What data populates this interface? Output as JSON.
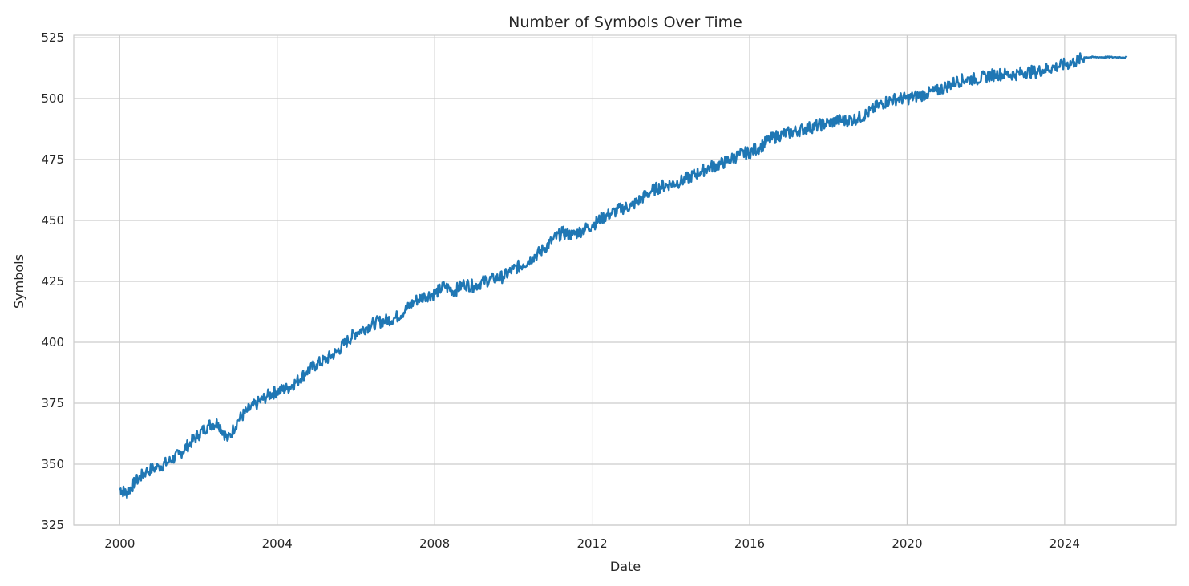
{
  "chart_data": {
    "type": "line",
    "title": "Number of Symbols Over Time",
    "xlabel": "Date",
    "ylabel": "Symbols",
    "x_ticks": [
      "2000",
      "2004",
      "2008",
      "2012",
      "2016",
      "2020",
      "2024"
    ],
    "y_ticks": [
      "325",
      "350",
      "375",
      "400",
      "425",
      "450",
      "475",
      "500",
      "525"
    ],
    "xlim": [
      "1998-11",
      "2026-11"
    ],
    "ylim": [
      325,
      526
    ],
    "grid": true,
    "line_color": "#1f77b4",
    "series": [
      {
        "x": [
          "2000-01",
          "2000-03",
          "2000-06",
          "2000-09",
          "2001-01",
          "2001-04",
          "2001-07",
          "2001-10",
          "2002-01",
          "2002-04",
          "2002-07",
          "2002-10",
          "2003-01",
          "2003-04",
          "2003-07",
          "2003-10",
          "2004-01",
          "2004-04",
          "2004-07",
          "2004-10",
          "2005-01",
          "2005-04",
          "2005-07",
          "2005-10",
          "2006-01",
          "2006-04",
          "2006-07",
          "2006-10",
          "2007-01",
          "2007-04",
          "2007-07",
          "2007-10",
          "2008-01",
          "2008-04",
          "2008-07",
          "2008-10",
          "2009-01",
          "2009-04",
          "2009-07",
          "2009-10",
          "2010-01",
          "2010-04",
          "2010-07",
          "2010-10",
          "2011-01",
          "2011-04",
          "2011-07",
          "2011-10",
          "2012-01",
          "2012-04",
          "2012-07",
          "2012-10",
          "2013-01",
          "2013-04",
          "2013-07",
          "2013-10",
          "2014-01",
          "2014-04",
          "2014-07",
          "2014-10",
          "2015-01",
          "2015-04",
          "2015-07",
          "2015-10",
          "2016-01",
          "2016-04",
          "2016-07",
          "2016-10",
          "2017-01",
          "2017-04",
          "2017-07",
          "2017-10",
          "2018-01",
          "2018-04",
          "2018-07",
          "2018-10",
          "2019-01",
          "2019-04",
          "2019-07",
          "2019-10",
          "2020-01",
          "2020-04",
          "2020-07",
          "2020-10",
          "2021-01",
          "2021-04",
          "2021-07",
          "2021-10",
          "2022-01",
          "2022-04",
          "2022-07",
          "2022-10",
          "2023-01",
          "2023-04",
          "2023-07",
          "2023-10",
          "2024-01",
          "2024-04",
          "2024-07",
          "2024-10",
          "2025-01",
          "2025-04",
          "2025-08"
        ],
        "values": [
          340,
          338,
          343,
          347,
          349,
          351,
          354,
          358,
          362,
          366,
          367,
          360,
          368,
          372,
          375,
          378,
          380,
          381,
          384,
          388,
          391,
          393,
          396,
          400,
          404,
          406,
          408,
          409,
          410,
          413,
          417,
          419,
          420,
          423,
          421,
          424,
          423,
          425,
          426,
          427,
          430,
          432,
          435,
          438,
          442,
          445,
          444,
          446,
          448,
          451,
          453,
          455,
          456,
          459,
          462,
          464,
          465,
          466,
          468,
          470,
          472,
          473,
          475,
          477,
          478,
          480,
          483,
          485,
          486,
          487,
          488,
          489,
          490,
          491,
          491,
          492,
          494,
          497,
          499,
          500,
          500,
          501,
          502,
          503,
          505,
          507,
          508,
          508,
          509,
          510,
          510,
          510,
          511,
          511,
          512,
          513,
          514,
          515,
          517,
          517,
          517,
          517,
          517
        ]
      }
    ]
  }
}
